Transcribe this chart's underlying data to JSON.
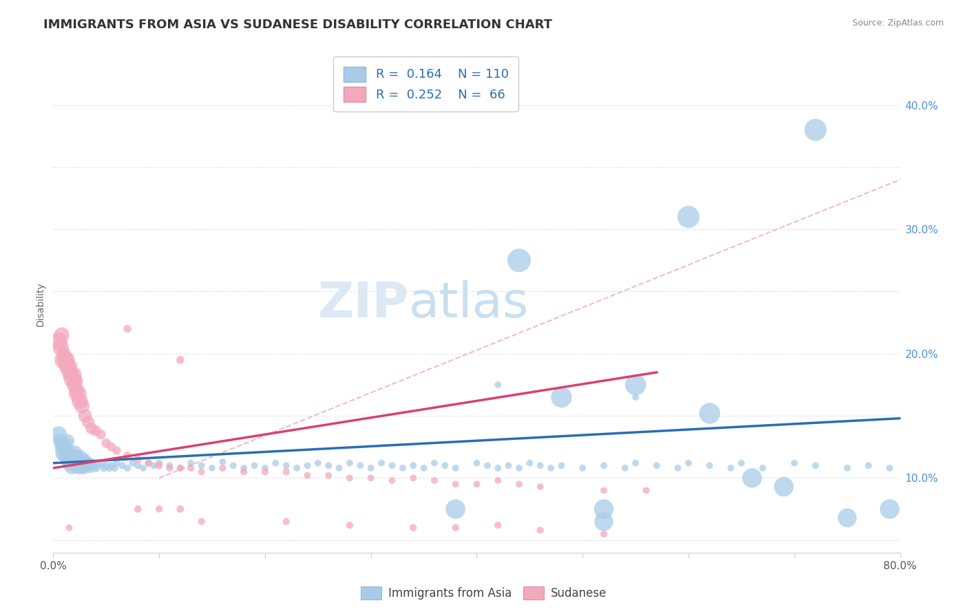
{
  "title": "IMMIGRANTS FROM ASIA VS SUDANESE DISABILITY CORRELATION CHART",
  "source": "Source: ZipAtlas.com",
  "ylabel": "Disability",
  "watermark_zip": "ZIP",
  "watermark_atlas": "atlas",
  "legend_labels": [
    "Immigrants from Asia",
    "Sudanese"
  ],
  "blue_R": 0.164,
  "blue_N": 110,
  "pink_R": 0.252,
  "pink_N": 66,
  "blue_color": "#a8cce8",
  "pink_color": "#f4a8bc",
  "blue_line_color": "#2a6db5",
  "pink_line_color": "#d94070",
  "dashed_line_color": "#e8a0b8",
  "xlim": [
    0.0,
    0.8
  ],
  "ylim": [
    0.04,
    0.44
  ],
  "xticks": [
    0.0,
    0.1,
    0.2,
    0.3,
    0.4,
    0.5,
    0.6,
    0.7,
    0.8
  ],
  "yticks": [
    0.05,
    0.1,
    0.15,
    0.2,
    0.25,
    0.3,
    0.35,
    0.4
  ],
  "right_yticklabels": [
    "",
    "10.0%",
    "",
    "20.0%",
    "",
    "30.0%",
    "",
    "40.0%"
  ],
  "xticklabels_show": [
    "0.0%",
    "80.0%"
  ],
  "background_color": "#ffffff",
  "grid_color": "#e0e0e0",
  "title_fontsize": 13,
  "axis_label_fontsize": 10,
  "tick_fontsize": 11,
  "legend_fontsize": 13,
  "blue_scatter_x": [
    0.005,
    0.007,
    0.008,
    0.01,
    0.01,
    0.012,
    0.012,
    0.013,
    0.014,
    0.015,
    0.015,
    0.016,
    0.017,
    0.018,
    0.018,
    0.019,
    0.02,
    0.02,
    0.021,
    0.022,
    0.022,
    0.023,
    0.023,
    0.024,
    0.025,
    0.025,
    0.026,
    0.027,
    0.028,
    0.029,
    0.03,
    0.031,
    0.032,
    0.033,
    0.034,
    0.035,
    0.036,
    0.037,
    0.04,
    0.042,
    0.045,
    0.048,
    0.05,
    0.053,
    0.055,
    0.058,
    0.06,
    0.065,
    0.07,
    0.075,
    0.08,
    0.085,
    0.09,
    0.095,
    0.1,
    0.11,
    0.12,
    0.13,
    0.14,
    0.15,
    0.16,
    0.17,
    0.18,
    0.19,
    0.2,
    0.21,
    0.22,
    0.23,
    0.24,
    0.25,
    0.26,
    0.27,
    0.28,
    0.29,
    0.3,
    0.31,
    0.32,
    0.33,
    0.34,
    0.35,
    0.36,
    0.37,
    0.38,
    0.4,
    0.41,
    0.42,
    0.43,
    0.44,
    0.45,
    0.46,
    0.47,
    0.48,
    0.5,
    0.52,
    0.54,
    0.55,
    0.57,
    0.59,
    0.6,
    0.62,
    0.64,
    0.65,
    0.67,
    0.7,
    0.72,
    0.75,
    0.77,
    0.79,
    0.42,
    0.55
  ],
  "blue_scatter_y": [
    0.135,
    0.13,
    0.128,
    0.125,
    0.12,
    0.118,
    0.122,
    0.115,
    0.13,
    0.12,
    0.115,
    0.112,
    0.118,
    0.115,
    0.11,
    0.113,
    0.12,
    0.115,
    0.112,
    0.118,
    0.113,
    0.11,
    0.115,
    0.112,
    0.11,
    0.116,
    0.113,
    0.11,
    0.113,
    0.108,
    0.115,
    0.112,
    0.11,
    0.112,
    0.11,
    0.108,
    0.112,
    0.11,
    0.108,
    0.11,
    0.112,
    0.108,
    0.11,
    0.108,
    0.11,
    0.108,
    0.112,
    0.11,
    0.108,
    0.112,
    0.11,
    0.108,
    0.112,
    0.11,
    0.112,
    0.11,
    0.108,
    0.112,
    0.11,
    0.108,
    0.113,
    0.11,
    0.108,
    0.11,
    0.108,
    0.112,
    0.11,
    0.108,
    0.11,
    0.112,
    0.11,
    0.108,
    0.112,
    0.11,
    0.108,
    0.112,
    0.11,
    0.108,
    0.11,
    0.108,
    0.112,
    0.11,
    0.108,
    0.112,
    0.11,
    0.108,
    0.11,
    0.108,
    0.112,
    0.11,
    0.108,
    0.11,
    0.108,
    0.11,
    0.108,
    0.112,
    0.11,
    0.108,
    0.112,
    0.11,
    0.108,
    0.112,
    0.108,
    0.112,
    0.11,
    0.108,
    0.11,
    0.108,
    0.175,
    0.165
  ],
  "blue_scatter_size": [
    300,
    250,
    220,
    380,
    320,
    280,
    240,
    210,
    180,
    160,
    200,
    280,
    240,
    210,
    340,
    300,
    260,
    220,
    190,
    170,
    200,
    260,
    230,
    200,
    340,
    290,
    250,
    220,
    190,
    170,
    150,
    200,
    170,
    150,
    130,
    110,
    100,
    90,
    80,
    75,
    70,
    65,
    65,
    60,
    60,
    55,
    55,
    55,
    55,
    55,
    55,
    50,
    50,
    50,
    50,
    50,
    50,
    50,
    50,
    50,
    50,
    50,
    50,
    50,
    50,
    50,
    50,
    50,
    50,
    50,
    50,
    50,
    50,
    50,
    50,
    50,
    50,
    50,
    50,
    50,
    50,
    50,
    50,
    50,
    50,
    50,
    50,
    50,
    50,
    50,
    50,
    50,
    50,
    50,
    50,
    50,
    50,
    50,
    50,
    50,
    50,
    50,
    50,
    50,
    50,
    50,
    50,
    50,
    50,
    50
  ],
  "blue_extra_x": [
    0.48,
    0.6,
    0.72,
    0.44,
    0.79,
    0.38,
    0.52,
    0.52,
    0.66,
    0.69,
    0.75,
    0.62,
    0.55
  ],
  "blue_extra_y": [
    0.165,
    0.31,
    0.38,
    0.275,
    0.075,
    0.075,
    0.075,
    0.065,
    0.1,
    0.093,
    0.068,
    0.152,
    0.175
  ],
  "blue_extra_size": [
    80,
    90,
    90,
    100,
    70,
    70,
    70,
    65,
    70,
    70,
    65,
    80,
    80
  ],
  "pink_scatter_x": [
    0.005,
    0.007,
    0.008,
    0.01,
    0.01,
    0.012,
    0.013,
    0.015,
    0.016,
    0.017,
    0.018,
    0.019,
    0.02,
    0.021,
    0.022,
    0.023,
    0.025,
    0.027,
    0.03,
    0.033,
    0.036,
    0.04,
    0.045,
    0.05,
    0.055,
    0.06,
    0.07,
    0.08,
    0.09,
    0.1,
    0.11,
    0.12,
    0.13,
    0.14,
    0.16,
    0.18,
    0.2,
    0.22,
    0.24,
    0.26,
    0.28,
    0.3,
    0.32,
    0.34,
    0.36,
    0.38,
    0.4,
    0.42,
    0.44,
    0.46,
    0.52,
    0.56,
    0.1,
    0.14,
    0.22,
    0.28,
    0.34,
    0.38,
    0.42,
    0.46,
    0.52,
    0.07,
    0.12,
    0.08,
    0.12,
    0.015
  ],
  "pink_scatter_y": [
    0.21,
    0.205,
    0.215,
    0.2,
    0.195,
    0.195,
    0.19,
    0.185,
    0.19,
    0.185,
    0.18,
    0.183,
    0.175,
    0.178,
    0.17,
    0.168,
    0.162,
    0.158,
    0.15,
    0.145,
    0.14,
    0.138,
    0.135,
    0.128,
    0.125,
    0.122,
    0.118,
    0.115,
    0.112,
    0.11,
    0.108,
    0.108,
    0.108,
    0.105,
    0.108,
    0.105,
    0.105,
    0.105,
    0.102,
    0.102,
    0.1,
    0.1,
    0.098,
    0.1,
    0.098,
    0.095,
    0.095,
    0.098,
    0.095,
    0.093,
    0.09,
    0.09,
    0.075,
    0.065,
    0.065,
    0.062,
    0.06,
    0.06,
    0.062,
    0.058,
    0.055,
    0.22,
    0.195,
    0.075,
    0.075,
    0.06
  ],
  "pink_scatter_size": [
    350,
    290,
    260,
    220,
    380,
    340,
    300,
    260,
    220,
    200,
    340,
    300,
    270,
    240,
    210,
    340,
    290,
    250,
    200,
    170,
    150,
    130,
    110,
    100,
    90,
    80,
    70,
    65,
    60,
    60,
    55,
    55,
    55,
    50,
    55,
    55,
    55,
    55,
    50,
    50,
    50,
    50,
    50,
    50,
    50,
    50,
    50,
    50,
    50,
    50,
    50,
    50,
    55,
    55,
    55,
    55,
    55,
    55,
    55,
    55,
    55,
    70,
    70,
    60,
    60,
    50
  ],
  "blue_trend_x": [
    0.0,
    0.8
  ],
  "blue_trend_y": [
    0.112,
    0.148
  ],
  "pink_trend_x": [
    0.0,
    0.57
  ],
  "pink_trend_y": [
    0.108,
    0.185
  ],
  "dashed_trend_x": [
    0.1,
    0.8
  ],
  "dashed_trend_y": [
    0.1,
    0.34
  ]
}
